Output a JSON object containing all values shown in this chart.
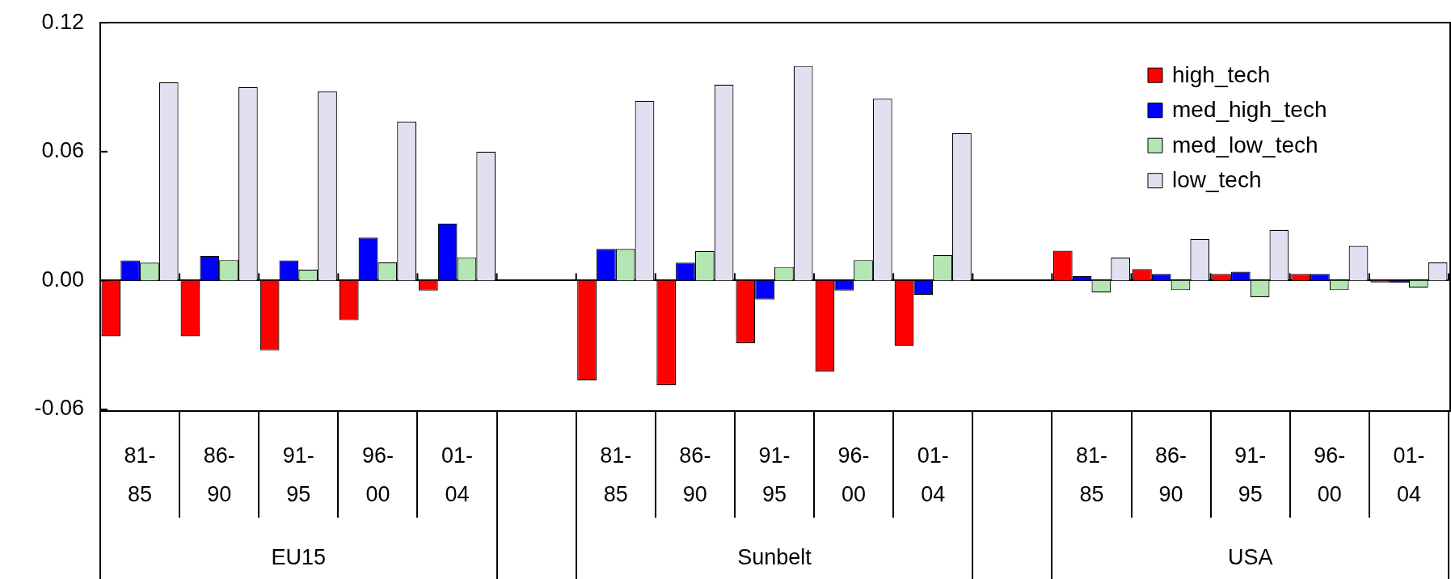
{
  "chart_data": {
    "type": "bar",
    "categories": [
      "81-85",
      "86-90",
      "91-95",
      "96-00",
      "01-04",
      null,
      "81-85",
      "86-90",
      "91-95",
      "96-00",
      "01-04",
      null,
      "81-85",
      "86-90",
      "91-95",
      "96-00",
      "01-04"
    ],
    "series": [
      {
        "name": "high_tech",
        "color": "#ff0000",
        "values": [
          -0.026,
          -0.026,
          -0.0325,
          -0.0185,
          -0.0046,
          null,
          -0.0465,
          -0.0487,
          -0.0292,
          -0.0423,
          -0.0304,
          null,
          0.0139,
          0.0053,
          0.0031,
          0.0031,
          -0.0009
        ]
      },
      {
        "name": "med_high_tech",
        "color": "#0000ff",
        "values": [
          0.0094,
          0.0115,
          0.0094,
          0.02,
          0.0265,
          null,
          0.0147,
          0.0083,
          -0.0088,
          -0.0046,
          -0.0067,
          null,
          0.0021,
          0.0031,
          0.0041,
          0.0031,
          -0.0011
        ]
      },
      {
        "name": "med_low_tech",
        "color": "#b3e6b3",
        "values": [
          0.0083,
          0.0095,
          0.0051,
          0.0085,
          0.0108,
          null,
          0.0147,
          0.0138,
          0.0063,
          0.0095,
          0.0118,
          null,
          -0.0056,
          -0.0045,
          -0.0077,
          -0.0045,
          -0.0033
        ]
      },
      {
        "name": "low_tech",
        "color": "#e0e0f0",
        "values": [
          0.0923,
          0.0901,
          0.088,
          0.074,
          0.06,
          null,
          0.0836,
          0.0912,
          0.0999,
          0.0846,
          0.0686,
          null,
          0.0107,
          0.0193,
          0.0235,
          0.0161,
          0.0084
        ]
      }
    ],
    "ylim": [
      -0.06,
      0.12
    ],
    "yticks": [
      {
        "value": -0.06,
        "label": "-0.06"
      },
      {
        "value": 0,
        "label": "0.00"
      },
      {
        "value": 0.06,
        "label": "0.06"
      },
      {
        "value": 0.12,
        "label": "0.12"
      }
    ],
    "grid": false,
    "legend": "top right",
    "annotations": [
      "EU15",
      "Sunbelt",
      "USA"
    ]
  }
}
